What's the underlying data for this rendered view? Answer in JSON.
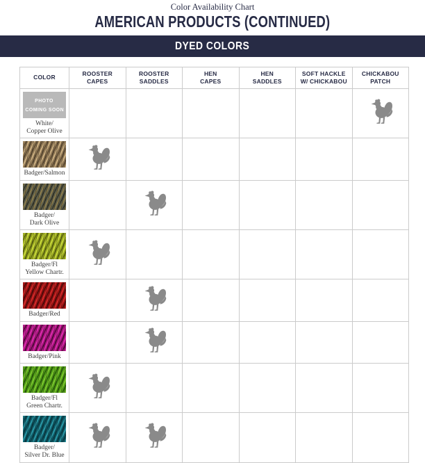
{
  "header": {
    "subtitle": "Color Availability Chart",
    "title": "AMERICAN PRODUCTS (CONTINUED)",
    "banner": "DYED COLORS"
  },
  "colors": {
    "navy": "#272b45",
    "grid_line": "#cbcbcb",
    "rooster_gray": "#8a8a8a",
    "placeholder_gray": "#b9b9b9",
    "label_text": "#3b3b3b",
    "swatches": {
      "badger-salmon": [
        "#c9ad7f",
        "#8a7352",
        "#50402a"
      ],
      "badger-dark-olive": [
        "#8a7a4a",
        "#5a5c4a",
        "#26261c"
      ],
      "badger-fl-yellow-chartr": [
        "#c6d63a",
        "#95a41f",
        "#4a520d"
      ],
      "badger-red": [
        "#d12a2a",
        "#961212",
        "#330808"
      ],
      "badger-pink": [
        "#d92cab",
        "#a31378",
        "#36082a"
      ],
      "badger-fl-green-chartr": [
        "#7cc42e",
        "#4c9a16",
        "#1f4708"
      ],
      "badger-silver-dr-blue": [
        "#2a97a5",
        "#0f5a66",
        "#06333c"
      ]
    }
  },
  "icons": {
    "availability_marker": "rooster-icon",
    "photo_placeholder": "photo-placeholder"
  },
  "table": {
    "columns": [
      {
        "key": "color",
        "lines": [
          "COLOR"
        ]
      },
      {
        "key": "rooster_capes",
        "lines": [
          "ROOSTER",
          "CAPES"
        ]
      },
      {
        "key": "rooster_saddles",
        "lines": [
          "ROOSTER",
          "SADDLES"
        ]
      },
      {
        "key": "hen_capes",
        "lines": [
          "HEN",
          "CAPES"
        ]
      },
      {
        "key": "hen_saddles",
        "lines": [
          "HEN",
          "SADDLES"
        ]
      },
      {
        "key": "soft_hackle_chickabou",
        "lines": [
          "SOFT HACKLE",
          "W/ CHICKABOU"
        ]
      },
      {
        "key": "chickabou_patch",
        "lines": [
          "CHICKABOU",
          "PATCH"
        ]
      }
    ],
    "rows": [
      {
        "label_lines": [
          "White/",
          "Copper Olive"
        ],
        "swatch": "placeholder",
        "placeholder_lines": [
          "PHOTO",
          "COMING SOON"
        ],
        "available_in": [
          "chickabou_patch"
        ]
      },
      {
        "label_lines": [
          "Badger/Salmon"
        ],
        "swatch": "badger-salmon",
        "available_in": [
          "rooster_capes"
        ]
      },
      {
        "label_lines": [
          "Badger/",
          "Dark Olive"
        ],
        "swatch": "badger-dark-olive",
        "available_in": [
          "rooster_saddles"
        ]
      },
      {
        "label_lines": [
          "Badger/Fl",
          "Yellow Chartr."
        ],
        "swatch": "badger-fl-yellow-chartr",
        "available_in": [
          "rooster_capes"
        ]
      },
      {
        "label_lines": [
          "Badger/Red"
        ],
        "swatch": "badger-red",
        "available_in": [
          "rooster_saddles"
        ]
      },
      {
        "label_lines": [
          "Badger/Pink"
        ],
        "swatch": "badger-pink",
        "available_in": [
          "rooster_saddles"
        ]
      },
      {
        "label_lines": [
          "Badger/Fl",
          "Green Chartr."
        ],
        "swatch": "badger-fl-green-chartr",
        "available_in": [
          "rooster_capes"
        ]
      },
      {
        "label_lines": [
          "Badger/",
          "Silver Dr. Blue"
        ],
        "swatch": "badger-silver-dr-blue",
        "available_in": [
          "rooster_capes",
          "rooster_saddles"
        ]
      }
    ]
  }
}
